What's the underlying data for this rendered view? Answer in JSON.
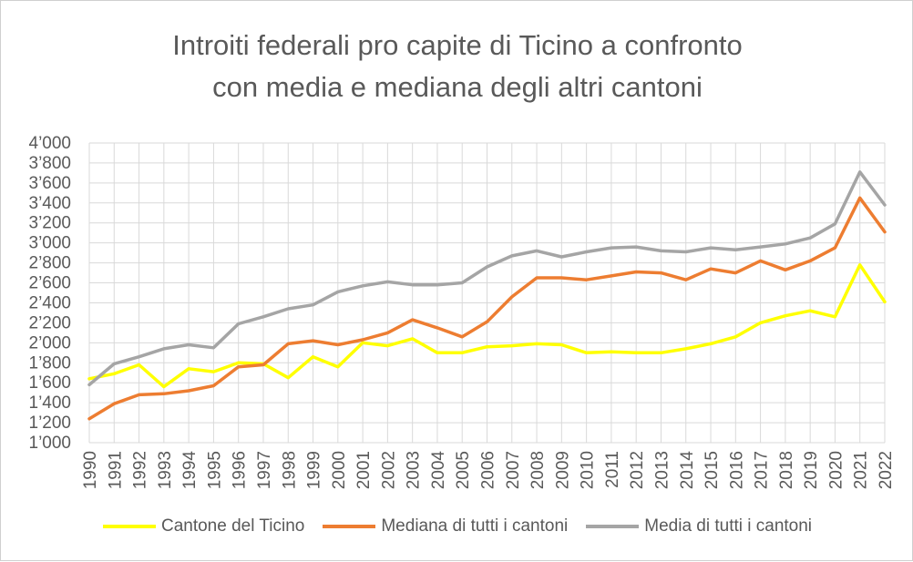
{
  "chart_data": {
    "type": "line",
    "title_lines": [
      "Introiti federali pro capite di Ticino a confronto",
      "con media e mediana degli altri cantoni"
    ],
    "xlabel": "",
    "ylabel": "",
    "x": [
      "1990",
      "1991",
      "1992",
      "1993",
      "1994",
      "1995",
      "1996",
      "1997",
      "1998",
      "1999",
      "2000",
      "2001",
      "2002",
      "2003",
      "2004",
      "2005",
      "2006",
      "2007",
      "2008",
      "2009",
      "2010",
      "2011",
      "2012",
      "2013",
      "2014",
      "2015",
      "2016",
      "2017",
      "2018",
      "2019",
      "2020",
      "2021",
      "2022"
    ],
    "ylim": [
      1000,
      4000
    ],
    "yticks": [
      1000,
      1200,
      1400,
      1600,
      1800,
      2000,
      2200,
      2400,
      2600,
      2800,
      3000,
      3200,
      3400,
      3600,
      3800,
      4000
    ],
    "ytick_labels": [
      "1’000",
      "1’200",
      "1’400",
      "1’600",
      "1’800",
      "2’000",
      "2’200",
      "2’400",
      "2’600",
      "2’800",
      "3’000",
      "3’200",
      "3’400",
      "3’600",
      "3’800",
      "4’000"
    ],
    "grid": true,
    "legend_position": "bottom",
    "series": [
      {
        "name": "Cantone del Ticino",
        "color": "#FFFF00",
        "values": [
          1640,
          1690,
          1780,
          1560,
          1740,
          1710,
          1800,
          1790,
          1650,
          1860,
          1760,
          2000,
          1970,
          2040,
          1900,
          1900,
          1960,
          1970,
          1990,
          1980,
          1900,
          1910,
          1900,
          1900,
          1940,
          1990,
          2060,
          2200,
          2270,
          2320,
          2260,
          2780,
          2410
        ]
      },
      {
        "name": "Mediana di tutti i cantoni",
        "color": "#ED7D31",
        "values": [
          1240,
          1390,
          1480,
          1490,
          1520,
          1570,
          1760,
          1780,
          1990,
          2020,
          1980,
          2030,
          2100,
          2230,
          2150,
          2060,
          2210,
          2460,
          2650,
          2650,
          2630,
          2670,
          2710,
          2700,
          2630,
          2740,
          2700,
          2820,
          2730,
          2820,
          2950,
          3450,
          3110
        ]
      },
      {
        "name": "Media di tutti i cantoni",
        "color": "#A5A5A5",
        "values": [
          1580,
          1790,
          1860,
          1940,
          1980,
          1950,
          2190,
          2260,
          2340,
          2380,
          2510,
          2570,
          2610,
          2580,
          2580,
          2600,
          2760,
          2870,
          2920,
          2860,
          2910,
          2950,
          2960,
          2920,
          2910,
          2950,
          2930,
          2960,
          2990,
          3050,
          3190,
          3710,
          3380
        ]
      }
    ]
  }
}
